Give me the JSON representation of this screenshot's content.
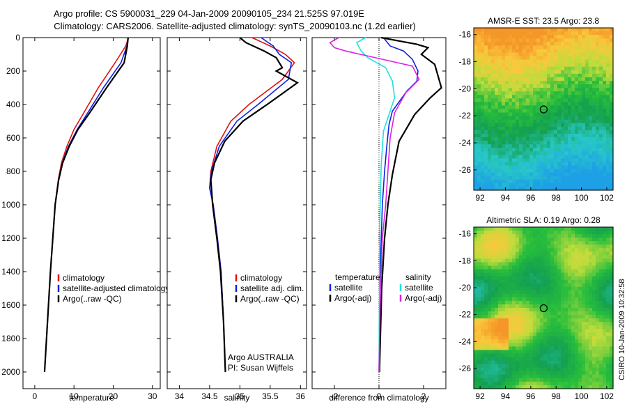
{
  "title_line1": "Argo profile: CS 5900031_229 04-Jan-2009 20090105_234 21.525S 97.019E",
  "title_line2": "Climatology: CARS2006. Satellite-adjusted climatology: synTS_20090103.nc (1.2d earlier)",
  "side_label": "CSIRO 10-Jan-2009 10:32:58",
  "colors": {
    "climatology": "#e01010",
    "satellite": "#1020e0",
    "argo": "#000000",
    "sat_cyan": "#20e0e0",
    "argo_magenta": "#e020e0"
  },
  "chart_data": [
    {
      "type": "line",
      "xlabel": "temperature",
      "ylabel": "",
      "xlim": [
        -3,
        32
      ],
      "ylim": [
        2100,
        0
      ],
      "y_reversed": true,
      "xticks": [
        0,
        10,
        20,
        30
      ],
      "yticks": [
        0,
        200,
        400,
        600,
        800,
        1000,
        1200,
        1400,
        1600,
        1800,
        2000
      ],
      "legend": {
        "placement": "middle-right",
        "entries": [
          "climatology",
          "satellite-adjusted climatology",
          "Argo(..raw -QC)"
        ]
      },
      "series": [
        {
          "name": "climatology",
          "color": "climatology",
          "x": [
            23.9,
            23.2,
            20.5,
            16.2,
            12.5,
            10.0,
            8.2,
            6.8,
            6.0,
            5.2,
            4.6,
            4.0,
            3.5,
            3.0,
            2.5
          ],
          "y": [
            0,
            50,
            150,
            300,
            450,
            550,
            650,
            750,
            850,
            1000,
            1200,
            1400,
            1600,
            1800,
            2000
          ]
        },
        {
          "name": "satellite-adjusted climatology",
          "color": "satellite",
          "x": [
            23.8,
            23.5,
            22.0,
            17.5,
            13.5,
            10.8,
            8.6,
            7.0,
            6.1,
            5.2,
            4.6,
            4.0,
            3.5,
            3.0,
            2.5
          ],
          "y": [
            0,
            50,
            150,
            300,
            450,
            550,
            650,
            750,
            850,
            1000,
            1200,
            1400,
            1600,
            1800,
            2000
          ]
        },
        {
          "name": "Argo(..raw -QC)",
          "color": "argo",
          "x": [
            23.8,
            23.6,
            22.8,
            18.3,
            14.0,
            11.0,
            8.8,
            7.1,
            6.1,
            5.2,
            4.6,
            4.0,
            3.5,
            3.0,
            2.5
          ],
          "y": [
            0,
            50,
            150,
            300,
            450,
            550,
            650,
            750,
            850,
            1000,
            1200,
            1400,
            1600,
            1800,
            2000
          ]
        }
      ]
    },
    {
      "type": "line",
      "xlabel": "salinity",
      "ylabel": "",
      "xlim": [
        33.8,
        36.1
      ],
      "ylim": [
        2100,
        0
      ],
      "y_reversed": true,
      "xticks": [
        34,
        34.5,
        35,
        35.5,
        36
      ],
      "legend": {
        "placement": "middle-right",
        "entries": [
          "climatology",
          "satellite adj. clim.",
          "Argo(..raw -QC)"
        ]
      },
      "annotations": [
        "Argo AUSTRALIA",
        "PI: Susan Wijffels"
      ],
      "series": [
        {
          "name": "climatology",
          "color": "climatology",
          "x": [
            35.2,
            35.5,
            35.75,
            35.9,
            35.7,
            35.15,
            34.85,
            34.62,
            34.52,
            34.5,
            34.56,
            34.63,
            34.69,
            34.73,
            34.76
          ],
          "y": [
            0,
            50,
            100,
            150,
            250,
            400,
            500,
            650,
            800,
            900,
            1000,
            1200,
            1400,
            1700,
            2000
          ]
        },
        {
          "name": "satellite adj. clim.",
          "color": "satellite",
          "x": [
            35.35,
            35.55,
            35.65,
            35.85,
            35.8,
            35.3,
            34.95,
            34.66,
            34.53,
            34.5,
            34.56,
            34.63,
            34.69,
            34.73,
            34.76
          ],
          "y": [
            0,
            50,
            100,
            150,
            250,
            400,
            500,
            650,
            800,
            900,
            1000,
            1200,
            1400,
            1700,
            2000
          ]
        },
        {
          "name": "Argo(..raw -QC)",
          "color": "argo",
          "x": [
            35.0,
            35.1,
            35.4,
            35.6,
            35.7,
            35.6,
            35.95,
            35.45,
            35.05,
            34.75,
            34.58,
            34.52,
            34.55,
            34.62,
            34.68,
            34.73,
            34.76
          ],
          "y": [
            0,
            30,
            80,
            120,
            180,
            200,
            270,
            400,
            500,
            620,
            750,
            850,
            1000,
            1200,
            1400,
            1700,
            2000
          ]
        }
      ]
    },
    {
      "type": "line",
      "xlabel": "difference from climatology",
      "ylabel": "",
      "xlim": [
        -3,
        3
      ],
      "ylim": [
        2100,
        0
      ],
      "y_reversed": true,
      "xticks": [
        -2,
        0,
        2
      ],
      "zero_line": "dotted",
      "legend": {
        "placement": "middle",
        "entries": [
          "temperature",
          "satellite",
          "Argo(-adj)",
          "salinity",
          "satellite",
          "Argo(-adj)"
        ]
      },
      "series": [
        {
          "name": "temperature satellite",
          "color": "satellite",
          "x": [
            0.2,
            0.5,
            1.1,
            1.5,
            1.75,
            1.7,
            1.25,
            0.6,
            0.45,
            0.35,
            0.25,
            0.15,
            0.08,
            0.05,
            0.03
          ],
          "y": [
            0,
            50,
            80,
            130,
            200,
            260,
            320,
            440,
            520,
            650,
            800,
            1000,
            1300,
            1600,
            2000
          ]
        },
        {
          "name": "temperature Argo(-adj)",
          "color": "argo",
          "x": [
            0.1,
            0.9,
            1.7,
            2.2,
            1.9,
            2.5,
            2.8,
            2.3,
            1.6,
            0.9,
            0.6,
            0.4,
            0.25,
            0.12,
            0.06,
            0.02
          ],
          "y": [
            0,
            20,
            40,
            60,
            100,
            160,
            300,
            360,
            460,
            620,
            820,
            1000,
            1200,
            1500,
            1800,
            2000
          ]
        },
        {
          "name": "salinity satellite",
          "color": "sat_cyan",
          "x": [
            -0.6,
            -1.0,
            -0.8,
            -0.5,
            0.3,
            0.6,
            0.7,
            0.45,
            0.2,
            0.1,
            0.04,
            0.0
          ],
          "y": [
            0,
            30,
            80,
            120,
            180,
            260,
            360,
            460,
            560,
            760,
            1100,
            2000
          ]
        },
        {
          "name": "salinity Argo(-adj)",
          "color": "argo_magenta",
          "x": [
            -1.8,
            -2.2,
            -2.0,
            -1.5,
            -0.5,
            0.5,
            1.5,
            1.8,
            1.2,
            0.7,
            0.5,
            0.4,
            0.3,
            0.15,
            0.05,
            0.0
          ],
          "y": [
            0,
            30,
            60,
            80,
            110,
            140,
            170,
            250,
            330,
            450,
            600,
            800,
            1000,
            1200,
            1600,
            2000
          ]
        }
      ]
    },
    {
      "type": "heatmap",
      "title": "AMSR-E SST: 23.5 Argo: 23.8",
      "xlim": [
        91.5,
        102.5
      ],
      "ylim": [
        -27.5,
        -15.5
      ],
      "xticks": [
        92,
        94,
        96,
        98,
        100,
        102
      ],
      "yticks": [
        -16,
        -18,
        -20,
        -22,
        -24,
        -26
      ],
      "colormap": "jet-like, warm north to cool south",
      "argo_position": {
        "lon": 97.019,
        "lat": -21.525
      }
    },
    {
      "type": "heatmap",
      "title": "Altimetric SLA: 0.19 Argo: 0.28",
      "xlim": [
        91.5,
        102.5
      ],
      "ylim": [
        -27.5,
        -15.5
      ],
      "xticks": [
        92,
        94,
        96,
        98,
        100,
        102
      ],
      "yticks": [
        -16,
        -18,
        -20,
        -22,
        -24,
        -26
      ],
      "colormap": "jet-like, green and yellow with orange patches",
      "argo_position": {
        "lon": 97.019,
        "lat": -21.525
      }
    }
  ]
}
